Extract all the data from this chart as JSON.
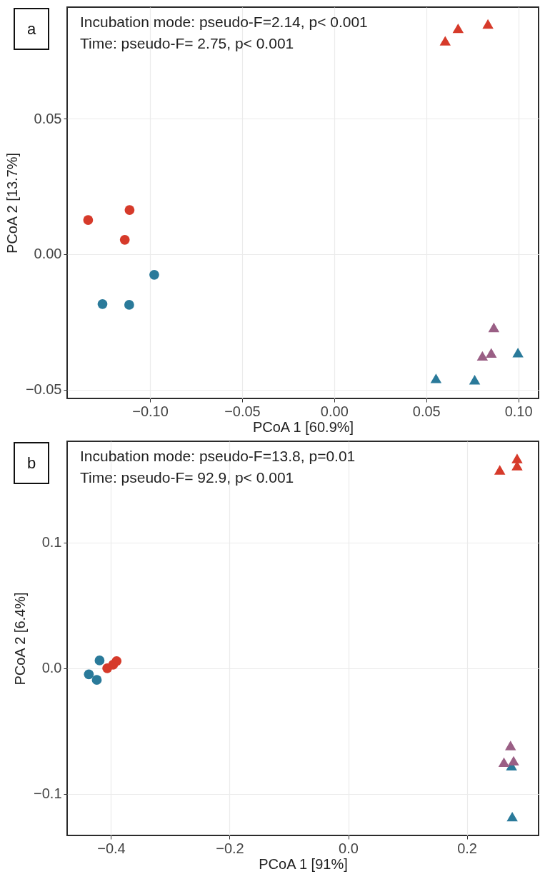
{
  "chart_data": [
    {
      "type": "scatter",
      "xlabel": "PCoA 1   [60.9%]",
      "ylabel": "PCoA 2   [13.7%]",
      "xlim": [
        -0.145,
        0.111
      ],
      "ylim": [
        -0.0532,
        0.0911
      ],
      "xticks": [
        {
          "value": -0.1,
          "label": "−0.10"
        },
        {
          "value": -0.05,
          "label": "−0.05"
        },
        {
          "value": 0,
          "label": "0.00"
        },
        0.05,
        {
          "value": 0.1,
          "label": "0.10"
        }
      ],
      "yticks": [
        {
          "value": -0.05,
          "label": "−0.05"
        },
        {
          "value": 0,
          "label": "0.00"
        },
        0.05
      ],
      "grid": true,
      "annotations": [
        "a",
        "Incubation mode: pseudo-F=2.14, p< 0.001",
        "Time: pseudo-F= 2.75, p< 0.001"
      ],
      "series": [
        {
          "type": "scatter",
          "marker": "circle",
          "color": "#d63a2a",
          "x": [
            -0.1336,
            -0.1111,
            -0.1137
          ],
          "values": [
            0.0126,
            0.0163,
            0.0053
          ]
        },
        {
          "type": "scatter",
          "marker": "circle",
          "color": "#2a7a9a",
          "x": [
            -0.0977,
            -0.1258,
            -0.1113
          ],
          "values": [
            -0.0076,
            -0.0184,
            -0.0187
          ]
        },
        {
          "type": "scatter",
          "marker": "triangle",
          "color": "#d63a2a",
          "x": [
            0.0603,
            0.0673,
            0.0835
          ],
          "values": [
            0.0787,
            0.0833,
            0.0849
          ]
        },
        {
          "type": "scatter",
          "marker": "triangle",
          "color": "#9a5f85",
          "x": [
            0.0867,
            0.0853,
            0.0805
          ],
          "values": [
            -0.027,
            -0.0364,
            -0.0375
          ]
        },
        {
          "type": "scatter",
          "marker": "triangle",
          "color": "#2a7a9a",
          "x": [
            0.0998,
            0.0553,
            0.0763
          ],
          "values": [
            -0.0363,
            -0.0458,
            -0.0463
          ]
        }
      ]
    },
    {
      "type": "scatter",
      "xlabel": "PCoA 1  [91%]",
      "ylabel": "PCoA 2   [6.4%]",
      "xlim": [
        -0.474,
        0.321
      ],
      "ylim": [
        -0.133,
        0.1805
      ],
      "xticks": [
        {
          "value": -0.4,
          "label": "−0.4"
        },
        {
          "value": -0.2,
          "label": "−0.2"
        },
        {
          "value": 0,
          "label": "0.0"
        },
        0.2
      ],
      "yticks": [
        {
          "value": -0.1,
          "label": "−0.1"
        },
        {
          "value": 0,
          "label": "0.0"
        },
        0.1
      ],
      "grid": true,
      "annotations": [
        "b",
        "Incubation mode: pseudo-F=13.8, p=0.01",
        "Time: pseudo-F= 92.9, p< 0.001"
      ],
      "series": [
        {
          "type": "scatter",
          "marker": "circle",
          "color": "#2a7a9a",
          "x": [
            -0.4193,
            -0.4374,
            -0.424
          ],
          "values": [
            0.0062,
            -0.0048,
            -0.0093
          ]
        },
        {
          "type": "scatter",
          "marker": "circle",
          "color": "#d63a2a",
          "x": [
            -0.4064,
            -0.3965,
            -0.3906
          ],
          "values": [
            0.0,
            0.0028,
            0.0057
          ]
        },
        {
          "type": "scatter",
          "marker": "triangle",
          "color": "#d63a2a",
          "x": [
            0.2556,
            0.2848,
            0.2848
          ],
          "values": [
            0.1578,
            0.1669,
            0.1612
          ]
        },
        {
          "type": "scatter",
          "marker": "triangle",
          "color": "#2a7a9a",
          "x": [
            0.2754,
            0.2766
          ],
          "values": [
            -0.0775,
            -0.118
          ]
        },
        {
          "type": "scatter",
          "marker": "triangle",
          "color": "#9a5f85",
          "x": [
            0.2737,
            0.2626,
            0.2789
          ],
          "values": [
            -0.0614,
            -0.0747,
            -0.0736
          ]
        }
      ]
    }
  ]
}
